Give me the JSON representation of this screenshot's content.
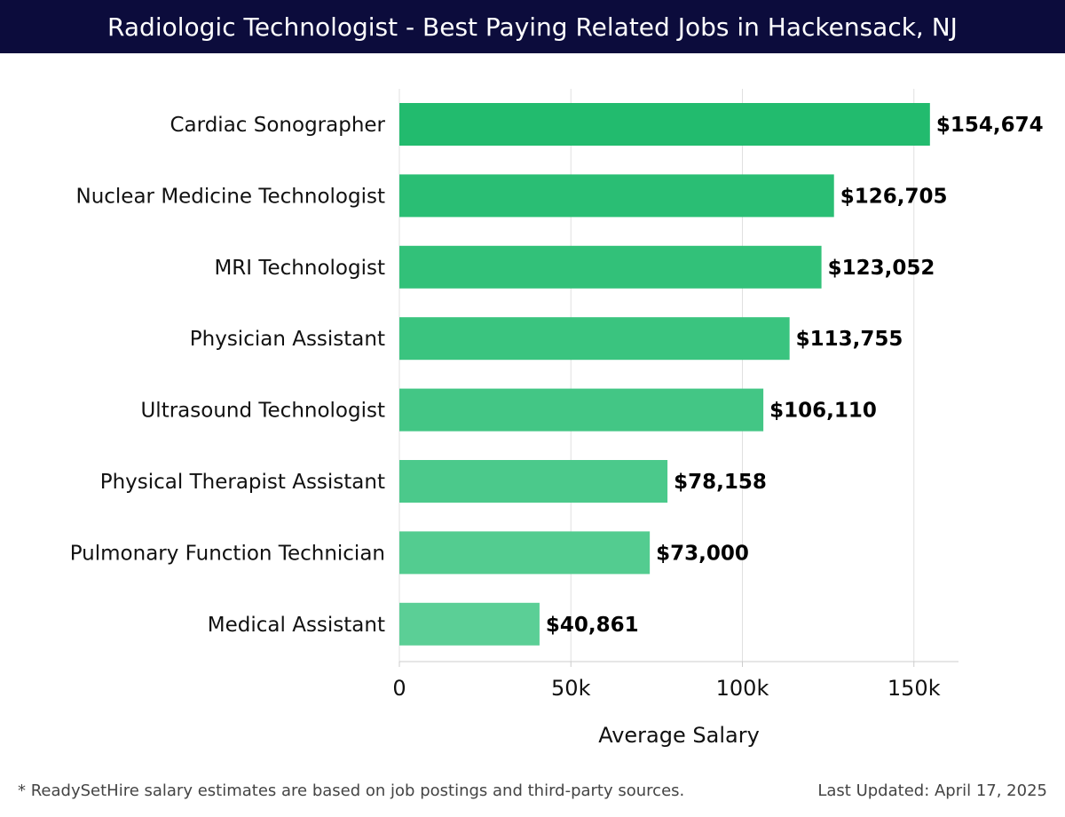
{
  "header": {
    "title": "Radiologic Technologist - Best Paying Related Jobs in Hackensack, NJ"
  },
  "chart_data": {
    "type": "bar",
    "orientation": "horizontal",
    "title": "Radiologic Technologist - Best Paying Related Jobs in Hackensack, NJ",
    "xlabel": "Average Salary",
    "ylabel": "",
    "categories": [
      "Cardiac Sonographer",
      "Nuclear Medicine Technologist",
      "MRI Technologist",
      "Physician Assistant",
      "Ultrasound Technologist",
      "Physical Therapist Assistant",
      "Pulmonary Function Technician",
      "Medical Assistant"
    ],
    "values": [
      154674,
      126705,
      123052,
      113755,
      106110,
      78158,
      73000,
      40861
    ],
    "value_labels": [
      "$154,674",
      "$126,705",
      "$123,052",
      "$113,755",
      "$106,110",
      "$78,158",
      "$73,000",
      "$40,861"
    ],
    "xlim": [
      0,
      163000
    ],
    "xticks": [
      0,
      50000,
      100000,
      150000
    ],
    "xtick_labels": [
      "0",
      "50k",
      "100k",
      "150k"
    ],
    "grid": "vertical",
    "legend": "none",
    "colors": {
      "bar_dark": "#22bb6e",
      "bar_light": "#5bcf96",
      "grid": "#e0e0e0",
      "axis": "#cccccc",
      "header_bg": "#0c0c3c",
      "header_text": "#ffffff"
    }
  },
  "footer": {
    "note": "* ReadySetHire salary estimates are based on job postings and third-party sources.",
    "updated": "Last Updated: April 17, 2025"
  }
}
